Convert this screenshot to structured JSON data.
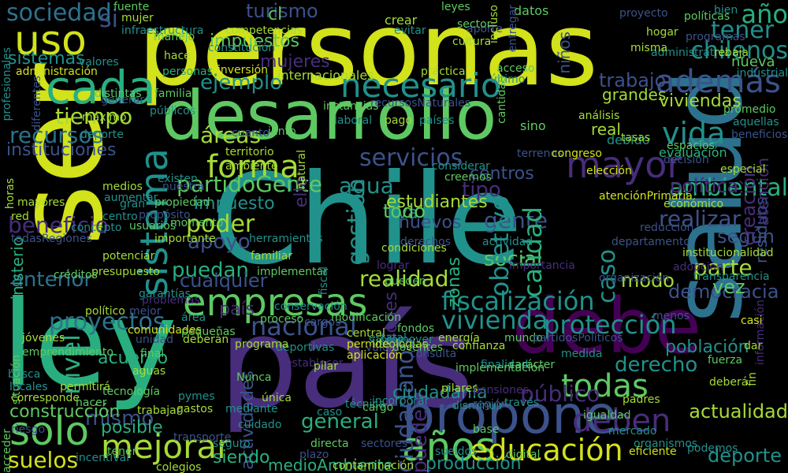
{
  "palette": {
    "background": "#000000",
    "yellow": "#d2e21b",
    "lightgreen": "#a5db36",
    "green": "#5ec962",
    "teal": "#21918c",
    "tealgreen": "#29af7f",
    "blue": "#3b528b",
    "steel": "#2c728e",
    "purple": "#472d7b",
    "darkpurple": "#440154"
  },
  "words": [
    {
      "text": "personas",
      "color": "#d2e21b"
    },
    {
      "text": "Chile",
      "color": "#21918c"
    },
    {
      "text": "país",
      "color": "#472d7b"
    },
    {
      "text": "ley",
      "color": "#29af7f"
    },
    {
      "text": "ser",
      "color": "#d2e21b"
    },
    {
      "text": "salud",
      "color": "#2c728e"
    },
    {
      "text": "desarrollo",
      "color": "#5ec962"
    },
    {
      "text": "debe",
      "color": "#440154"
    },
    {
      "text": "propone",
      "color": "#3b528b"
    },
    {
      "text": "sistema",
      "color": "#21918c"
    },
    {
      "text": "años",
      "color": "#5ec962"
    },
    {
      "text": "empresas",
      "color": "#5ec962"
    },
    {
      "text": "educación",
      "color": "#d2e21b"
    },
    {
      "text": "mayor",
      "color": "#472d7b"
    },
    {
      "text": "cada",
      "color": "#29af7f"
    },
    {
      "text": "uso",
      "color": "#d2e21b"
    },
    {
      "text": "solo",
      "color": "#5ec962"
    },
    {
      "text": "mejorar",
      "color": "#a5db36"
    },
    {
      "text": "además",
      "color": "#3b528b"
    },
    {
      "text": "necesario",
      "color": "#21918c"
    },
    {
      "text": "sociedad",
      "color": "#2c728e"
    },
    {
      "text": "forma",
      "color": "#a5db36"
    },
    {
      "text": "todas",
      "color": "#5ec962"
    },
    {
      "text": "deben",
      "color": "#472d7b"
    },
    {
      "text": "vida",
      "color": "#21918c"
    },
    {
      "text": "tener",
      "color": "#21918c"
    },
    {
      "text": "chilenos",
      "color": "#21918c"
    },
    {
      "text": "año",
      "color": "#29af7f"
    },
    {
      "text": "fiscalización",
      "color": "#21918c"
    },
    {
      "text": "protección",
      "color": "#21918c"
    },
    {
      "text": "proyectos",
      "color": "#2c728e"
    },
    {
      "text": "nacional",
      "color": "#3b528b"
    },
    {
      "text": "vivienda",
      "color": "#21918c"
    },
    {
      "text": "nivel",
      "color": "#29af7f"
    },
    {
      "text": "servicios",
      "color": "#3b528b"
    },
    {
      "text": "agua",
      "color": "#21918c"
    },
    {
      "text": "ambiental",
      "color": "#29af7f"
    },
    {
      "text": "partidoGente",
      "color": "#5ec962"
    },
    {
      "text": "gestión",
      "color": "#21918c"
    },
    {
      "text": "tipo",
      "color": "#472d7b"
    },
    {
      "text": "gente",
      "color": "#3b528b"
    },
    {
      "text": "realizar",
      "color": "#3b528b"
    },
    {
      "text": "política",
      "color": "#472d7b"
    },
    {
      "text": "poder",
      "color": "#a5db36"
    },
    {
      "text": "impuesto",
      "color": "#21918c"
    },
    {
      "text": "apoyo",
      "color": "#3b528b"
    },
    {
      "text": "puedan",
      "color": "#29af7f"
    },
    {
      "text": "beneficio",
      "color": "#472d7b"
    },
    {
      "text": "recursos",
      "color": "#2c728e"
    },
    {
      "text": "instituciones",
      "color": "#3b528b"
    },
    {
      "text": "tiempo",
      "color": "#a5db36"
    },
    {
      "text": "ejemplo",
      "color": "#21918c"
    },
    {
      "text": "trabajo",
      "color": "#3b528b"
    },
    {
      "text": "áreas",
      "color": "#a5db36"
    },
    {
      "text": "social",
      "color": "#5ec962"
    },
    {
      "text": "parte",
      "color": "#a5db36"
    },
    {
      "text": "realidad",
      "color": "#a5db36"
    },
    {
      "text": "anterior",
      "color": "#2c728e"
    },
    {
      "text": "cualquier",
      "color": "#3b528b"
    },
    {
      "text": "derecho",
      "color": "#21918c"
    },
    {
      "text": "democracia",
      "color": "#3b528b"
    },
    {
      "text": "deporte",
      "color": "#21918c"
    },
    {
      "text": "acuerdo",
      "color": "#29af7f"
    },
    {
      "text": "mismo",
      "color": "#3b528b"
    },
    {
      "text": "posible",
      "color": "#29af7f"
    },
    {
      "text": "suelos",
      "color": "#d2e21b"
    },
    {
      "text": "construcción",
      "color": "#5ec962"
    },
    {
      "text": "general",
      "color": "#29af7f"
    },
    {
      "text": "puede",
      "color": "#472d7b"
    },
    {
      "text": "medioAmbiente",
      "color": "#29af7f"
    },
    {
      "text": "producción",
      "color": "#21918c"
    },
    {
      "text": "público",
      "color": "#472d7b"
    },
    {
      "text": "actualidad",
      "color": "#a5db36"
    },
    {
      "text": "turismo",
      "color": "#3b528b"
    },
    {
      "text": "mujeres",
      "color": "#472d7b"
    },
    {
      "text": "sistemas",
      "color": "#21918c"
    },
    {
      "text": "impuestos",
      "color": "#5ec962"
    },
    {
      "text": "viviendas",
      "color": "#a5db36"
    },
    {
      "text": "grandes",
      "color": "#a5db36"
    },
    {
      "text": "ello",
      "color": "#472d7b"
    },
    {
      "text": "calidad",
      "color": "#29af7f"
    },
    {
      "text": "objetivo",
      "color": "#21918c"
    },
    {
      "text": "caso",
      "color": "#21918c"
    },
    {
      "text": "modo",
      "color": "#a5db36"
    },
    {
      "text": "vez",
      "color": "#5ec962"
    },
    {
      "text": "población",
      "color": "#21918c"
    },
    {
      "text": "según",
      "color": "#3b528b"
    },
    {
      "text": "centros",
      "color": "#3b528b"
    },
    {
      "text": "zonas",
      "color": "#29af7f"
    },
    {
      "text": "creación",
      "color": "#472d7b"
    },
    {
      "text": "residuos",
      "color": "#3b528b"
    },
    {
      "text": "atención",
      "color": "#472d7b"
    },
    {
      "text": "estudiantes",
      "color": "#a5db36"
    },
    {
      "text": "iva",
      "color": "#21918c"
    },
    {
      "text": "nuevos",
      "color": "#3b528b"
    },
    {
      "text": "ministerio",
      "color": "#29af7f"
    },
    {
      "text": "regiones",
      "color": "#472d7b"
    },
    {
      "text": "ciudadanos",
      "color": "#3b528b"
    },
    {
      "text": "actividades",
      "color": "#3b528b"
    },
    {
      "text": "todo",
      "color": "#5ec962"
    },
    {
      "text": "siendo",
      "color": "#29af7f"
    },
    {
      "text": "ciudadanía",
      "color": "#21918c"
    },
    {
      "text": "país",
      "color": "#472d7b"
    },
    {
      "text": "si",
      "color": "#3b528b"
    },
    {
      "text": "cl",
      "color": "#5ec962"
    },
    {
      "text": "manejo",
      "color": "#5ec962"
    },
    {
      "text": "aporte",
      "color": "#3b528b"
    },
    {
      "text": "cultura",
      "color": "#a5db36"
    },
    {
      "text": "datos",
      "color": "#5ec962"
    },
    {
      "text": "crear",
      "color": "#a5db36"
    },
    {
      "text": "evitar",
      "color": "#21918c"
    },
    {
      "text": "leyes",
      "color": "#5ec962"
    },
    {
      "text": "programas",
      "color": "#3b528b"
    },
    {
      "text": "nueva",
      "color": "#5ec962"
    },
    {
      "text": "industrial",
      "color": "#21918c"
    },
    {
      "text": "niños",
      "color": "#3b528b"
    },
    {
      "text": "internacionales",
      "color": "#a5db36"
    },
    {
      "text": "práctica",
      "color": "#a5db36"
    },
    {
      "text": "acceso",
      "color": "#5ec962"
    },
    {
      "text": "último",
      "color": "#21918c"
    },
    {
      "text": "instancias",
      "color": "#5ec962"
    },
    {
      "text": "recursosNaturales",
      "color": "#3b528b"
    },
    {
      "text": "laboral",
      "color": "#21918c"
    },
    {
      "text": "pago",
      "color": "#a5db36"
    },
    {
      "text": "países",
      "color": "#21918c"
    },
    {
      "text": "sino",
      "color": "#5ec962"
    },
    {
      "text": "real",
      "color": "#a5db36"
    },
    {
      "text": "debido",
      "color": "#21918c"
    },
    {
      "text": "decisión",
      "color": "#3b528b"
    },
    {
      "text": "evaluación",
      "color": "#29af7f"
    },
    {
      "text": "espacios",
      "color": "#5ec962"
    },
    {
      "text": "tasas",
      "color": "#a5db36"
    },
    {
      "text": "elección",
      "color": "#d2e21b"
    },
    {
      "text": "considerar",
      "color": "#21918c"
    },
    {
      "text": "creemos",
      "color": "#5ec962"
    },
    {
      "text": "atenciónPrimaria",
      "color": "#d2e21b"
    },
    {
      "text": "económico",
      "color": "#a5db36"
    },
    {
      "text": "familia",
      "color": "#5ec962"
    },
    {
      "text": "públicos",
      "color": "#21918c"
    },
    {
      "text": "generar",
      "color": "#3b528b"
    },
    {
      "text": "máximo",
      "color": "#a5db36"
    },
    {
      "text": "competencias",
      "color": "#a5db36"
    },
    {
      "text": "constitución",
      "color": "#21918c"
    },
    {
      "text": "inversión",
      "color": "#d2e21b"
    },
    {
      "text": "valores",
      "color": "#21918c"
    },
    {
      "text": "administración",
      "color": "#d2e21b"
    },
    {
      "text": "territorio",
      "color": "#a5db36"
    },
    {
      "text": "ambiente",
      "color": "#a5db36"
    },
    {
      "text": "existen",
      "color": "#21918c"
    },
    {
      "text": "cuanto",
      "color": "#3b528b"
    },
    {
      "text": "junto",
      "color": "#5ec962"
    },
    {
      "text": "análisis",
      "color": "#a5db36"
    },
    {
      "text": "terrenos",
      "color": "#3b528b"
    },
    {
      "text": "congreso",
      "color": "#d2e21b"
    },
    {
      "text": "especial",
      "color": "#a5db36"
    },
    {
      "text": "propósito",
      "color": "#3b528b"
    },
    {
      "text": "momento",
      "color": "#5ec962"
    },
    {
      "text": "herramientas",
      "color": "#21918c"
    },
    {
      "text": "familiar",
      "color": "#a5db36"
    },
    {
      "text": "implementar",
      "color": "#5ec962"
    },
    {
      "text": "importante",
      "color": "#a5db36"
    },
    {
      "text": "garantías",
      "color": "#21918c"
    },
    {
      "text": "potenciar",
      "color": "#a5db36"
    },
    {
      "text": "concepto",
      "color": "#21918c"
    },
    {
      "text": "presupuesto",
      "color": "#a5db36"
    },
    {
      "text": "créditos",
      "color": "#5ec962"
    },
    {
      "text": "centro",
      "color": "#21918c"
    },
    {
      "text": "red",
      "color": "#a5db36"
    },
    {
      "text": "todasRegiones",
      "color": "#3b528b"
    },
    {
      "text": "horas",
      "color": "#a5db36"
    },
    {
      "text": "político",
      "color": "#a5db36"
    },
    {
      "text": "mejor",
      "color": "#3b528b"
    },
    {
      "text": "problemas",
      "color": "#472d7b"
    },
    {
      "text": "comunidades",
      "color": "#d2e21b"
    },
    {
      "text": "conservación",
      "color": "#21918c"
    },
    {
      "text": "proceso",
      "color": "#5ec962"
    },
    {
      "text": "cargos",
      "color": "#3b528b"
    },
    {
      "text": "área",
      "color": "#21918c"
    },
    {
      "text": "pequeñas",
      "color": "#5ec962"
    },
    {
      "text": "central",
      "color": "#a5db36"
    },
    {
      "text": "permite",
      "color": "#d2e21b"
    },
    {
      "text": "unidad",
      "color": "#3b528b"
    },
    {
      "text": "deberán",
      "color": "#a5db36"
    },
    {
      "text": "aguas",
      "color": "#a5db36"
    },
    {
      "text": "final",
      "color": "#5ec962"
    },
    {
      "text": "jóvenes",
      "color": "#a5db36"
    },
    {
      "text": "emprendimiento",
      "color": "#5ec962"
    },
    {
      "text": "busca",
      "color": "#21918c"
    },
    {
      "text": "situación",
      "color": "#5ec962"
    },
    {
      "text": "locales",
      "color": "#21918c"
    },
    {
      "text": "corresponde",
      "color": "#a5db36"
    },
    {
      "text": "riesgo",
      "color": "#3b528b"
    },
    {
      "text": "permitirá",
      "color": "#a5db36"
    },
    {
      "text": "hacer",
      "color": "#5ec962"
    },
    {
      "text": "pilares",
      "color": "#a5db36"
    },
    {
      "text": "finalidad",
      "color": "#21918c"
    },
    {
      "text": "implementación",
      "color": "#5ec962"
    },
    {
      "text": "confianza",
      "color": "#a5db36"
    },
    {
      "text": "disminuir",
      "color": "#21918c"
    },
    {
      "text": "pensiones",
      "color": "#472d7b"
    },
    {
      "text": "medida",
      "color": "#21918c"
    },
    {
      "text": "carácter",
      "color": "#5ec962"
    },
    {
      "text": "organización",
      "color": "#3b528b"
    },
    {
      "text": "menos",
      "color": "#3b528b"
    },
    {
      "text": "fuerza",
      "color": "#5ec962"
    },
    {
      "text": "deberá",
      "color": "#a5db36"
    },
    {
      "text": "eficiente",
      "color": "#d2e21b"
    },
    {
      "text": "podemos",
      "color": "#21918c"
    },
    {
      "text": "digital",
      "color": "#5ec962"
    },
    {
      "text": "gastos",
      "color": "#a5db36"
    },
    {
      "text": "pymes",
      "color": "#21918c"
    },
    {
      "text": "trabajar",
      "color": "#a5db36"
    },
    {
      "text": "tecnología",
      "color": "#5ec962"
    },
    {
      "text": "incentivar",
      "color": "#21918c"
    },
    {
      "text": "colegios",
      "color": "#a5db36"
    },
    {
      "text": "seguro",
      "color": "#21918c"
    },
    {
      "text": "plazo",
      "color": "#3b528b"
    },
    {
      "text": "directa",
      "color": "#5ec962"
    },
    {
      "text": "contaminación",
      "color": "#a5db36"
    },
    {
      "text": "técnica",
      "color": "#21918c"
    },
    {
      "text": "sectores",
      "color": "#3b528b"
    },
    {
      "text": "mediante",
      "color": "#21918c"
    },
    {
      "text": "única",
      "color": "#a5db36"
    },
    {
      "text": "Nunca",
      "color": "#5ec962"
    },
    {
      "text": "cuidado",
      "color": "#21918c"
    },
    {
      "text": "aplicación",
      "color": "#d2e21b"
    },
    {
      "text": "valor",
      "color": "#3b528b"
    },
    {
      "text": "establecer",
      "color": "#472d7b"
    },
    {
      "text": "modificación",
      "color": "#5ec962"
    },
    {
      "text": "energía",
      "color": "#a5db36"
    },
    {
      "text": "deportivas",
      "color": "#21918c"
    },
    {
      "text": "docentes",
      "color": "#5ec962"
    },
    {
      "text": "promover",
      "color": "#21918c"
    },
    {
      "text": "pilar",
      "color": "#a5db36"
    },
    {
      "text": "fondos",
      "color": "#5ec962"
    },
    {
      "text": "estatal",
      "color": "#21918c"
    },
    {
      "text": "condiciones",
      "color": "#a5db36"
    },
    {
      "text": "lograr",
      "color": "#472d7b"
    },
    {
      "text": "derechos",
      "color": "#3b528b"
    },
    {
      "text": "pueden",
      "color": "#5ec962"
    },
    {
      "text": "actividad",
      "color": "#21918c"
    },
    {
      "text": "importancia",
      "color": "#472d7b"
    },
    {
      "text": "departamento",
      "color": "#3b528b"
    },
    {
      "text": "reducción",
      "color": "#3b528b"
    },
    {
      "text": "institucionalidad",
      "color": "#a5db36"
    },
    {
      "text": "adopción",
      "color": "#472d7b"
    },
    {
      "text": "transparencia",
      "color": "#21918c"
    },
    {
      "text": "cantidad",
      "color": "#5ec962"
    },
    {
      "text": "entregar",
      "color": "#3b528b"
    },
    {
      "text": "incluso",
      "color": "#a5db36"
    },
    {
      "text": "sector",
      "color": "#5ec962"
    },
    {
      "text": "administrativa",
      "color": "#21918c"
    },
    {
      "text": "promedio",
      "color": "#5ec962"
    },
    {
      "text": "aquellas",
      "color": "#21918c"
    },
    {
      "text": "beneficios",
      "color": "#3b528b"
    },
    {
      "text": "información",
      "color": "#472d7b"
    },
    {
      "text": "casi",
      "color": "#d2e21b"
    },
    {
      "text": "dar",
      "color": "#a5db36"
    },
    {
      "text": "fin",
      "color": "#a5db36"
    },
    {
      "text": "mundo",
      "color": "#5ec962"
    },
    {
      "text": "partidosPolíticos",
      "color": "#3b528b"
    },
    {
      "text": "proyecto",
      "color": "#3b528b"
    },
    {
      "text": "políticas",
      "color": "#5ec962"
    },
    {
      "text": "bien",
      "color": "#21918c"
    },
    {
      "text": "rebaja",
      "color": "#a5db36"
    },
    {
      "text": "hogar",
      "color": "#a5db36"
    },
    {
      "text": "misma",
      "color": "#a5db36"
    },
    {
      "text": "hace",
      "color": "#a5db36"
    },
    {
      "text": "fuente",
      "color": "#5ec962"
    },
    {
      "text": "mujer",
      "color": "#a5db36"
    },
    {
      "text": "infraestructura",
      "color": "#21918c"
    },
    {
      "text": "personas",
      "color": "#29af7f"
    },
    {
      "text": "profesionales",
      "color": "#21918c"
    },
    {
      "text": "acceder",
      "color": "#5ec962"
    },
    {
      "text": "diferentes",
      "color": "#3b528b"
    },
    {
      "text": "distintas",
      "color": "#5ec962"
    },
    {
      "text": "natural",
      "color": "#a5db36"
    },
    {
      "text": "fiscal",
      "color": "#21918c"
    },
    {
      "text": "consulta",
      "color": "#3b528b"
    },
    {
      "text": "ideologías",
      "color": "#a5db36"
    },
    {
      "text": "incorporar",
      "color": "#21918c"
    },
    {
      "text": "cargo",
      "color": "#5ec962"
    },
    {
      "text": "caso",
      "color": "#21918c"
    },
    {
      "text": "región",
      "color": "#3b528b"
    },
    {
      "text": "través",
      "color": "#21918c"
    },
    {
      "text": "igualdad",
      "color": "#5ec962"
    },
    {
      "text": "mercado",
      "color": "#21918c"
    },
    {
      "text": "padres",
      "color": "#a5db36"
    },
    {
      "text": "organismos",
      "color": "#21918c"
    },
    {
      "text": "tener",
      "color": "#5ec962"
    },
    {
      "text": "transporte",
      "color": "#3b528b"
    },
    {
      "text": "programa",
      "color": "#a5db36"
    },
    {
      "text": "sueldos",
      "color": "#21918c"
    },
    {
      "text": "base",
      "color": "#5ec962"
    },
    {
      "text": "medios",
      "color": "#a5db36"
    },
    {
      "text": "aumentar",
      "color": "#21918c"
    },
    {
      "text": "nuestra",
      "color": "#3b528b"
    },
    {
      "text": "propiedad",
      "color": "#5ec962"
    },
    {
      "text": "gran",
      "color": "#21918c"
    },
    {
      "text": "usuarios",
      "color": "#5ec962"
    },
    {
      "text": "mayores",
      "color": "#a5db36"
    },
    {
      "text": "deporte",
      "color": "#21918c"
    }
  ]
}
